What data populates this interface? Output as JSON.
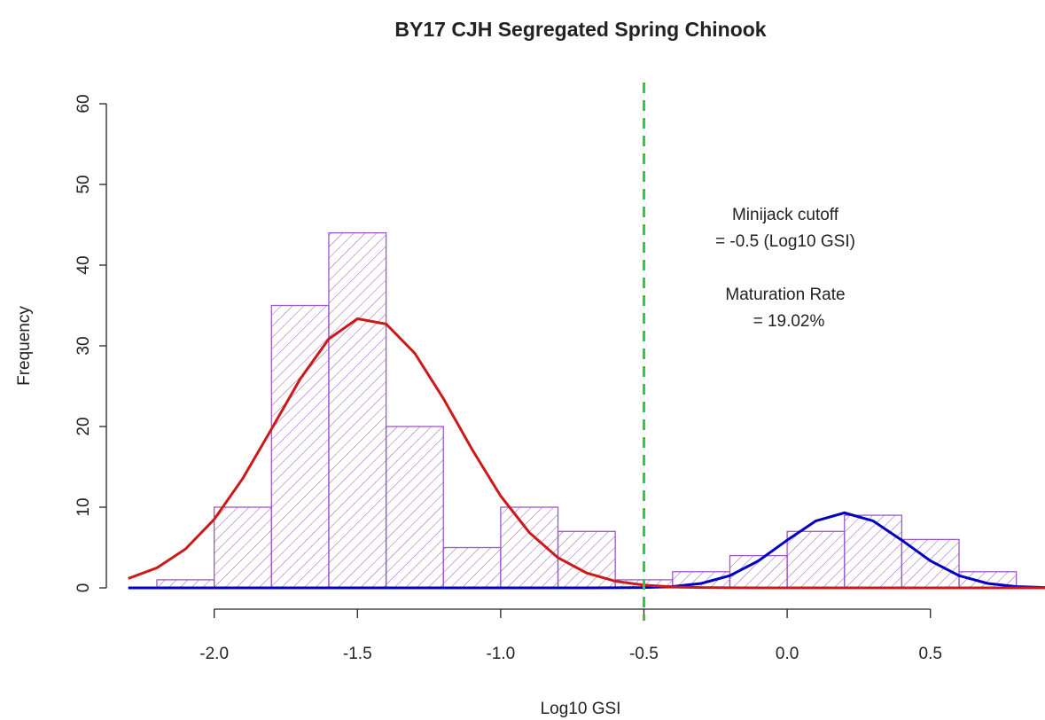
{
  "chart_data": {
    "type": "histogram",
    "title": "BY17 CJH Segregated Spring Chinook",
    "xlabel": "Log10 GSI",
    "ylabel": "Frequency",
    "bins": [
      -2.2,
      -2.0,
      -1.8,
      -1.6,
      -1.4,
      -1.2,
      -1.0,
      -0.8,
      -0.6,
      -0.4,
      -0.2,
      0.0,
      0.2,
      0.4,
      0.6,
      0.8
    ],
    "counts": [
      1,
      10,
      35,
      44,
      20,
      5,
      10,
      7,
      1,
      2,
      4,
      7,
      9,
      6,
      2
    ],
    "color": "#9b59c8",
    "xlim": [
      -2.33,
      0.9
    ],
    "ylim": [
      0,
      60
    ],
    "xticks": [
      {
        "value": -2,
        "label": "-2.0"
      },
      -1.5,
      {
        "value": -1,
        "label": "-1.0"
      },
      -0.5,
      {
        "value": 0,
        "label": "0.0"
      },
      0.5
    ],
    "yticks": [
      0,
      10,
      20,
      30,
      40,
      50,
      60
    ],
    "curves": [
      {
        "color": "#0000c0",
        "x": [
          -2.3,
          -2.2,
          -2.1,
          -2.0,
          -1.9,
          -1.8,
          -1.7,
          -1.6,
          -1.5,
          -1.4,
          -1.3,
          -1.2,
          -1.1,
          -1.0,
          -0.9,
          -0.8,
          -0.7,
          -0.6,
          -0.5,
          -0.4,
          -0.3,
          -0.2,
          -0.1,
          0.0,
          0.1,
          0.2,
          0.3,
          0.4,
          0.5,
          0.6,
          0.7,
          0.8,
          0.9
        ],
        "values": [
          0,
          0,
          0,
          0,
          0,
          0,
          0,
          0,
          0,
          0,
          0,
          0,
          0,
          0,
          0,
          0,
          0,
          0.01,
          0.04,
          0.16,
          0.55,
          1.52,
          3.35,
          5.91,
          8.3,
          9.3,
          8.3,
          5.91,
          3.35,
          1.52,
          0.55,
          0.16,
          0.04
        ]
      },
      {
        "color": "#cc1a1a",
        "x": [
          -2.3,
          -2.2,
          -2.1,
          -2.0,
          -1.9,
          -1.8,
          -1.7,
          -1.6,
          -1.5,
          -1.4,
          -1.3,
          -1.2,
          -1.1,
          -1.0,
          -0.9,
          -0.8,
          -0.7,
          -0.6,
          -0.5,
          -0.4,
          -0.3,
          -0.2,
          -0.1,
          0.0,
          0.1,
          0.2,
          0.3,
          0.4,
          0.5,
          0.6,
          0.7,
          0.8,
          0.9
        ],
        "values": [
          1.16,
          2.48,
          4.82,
          8.5,
          13.58,
          19.68,
          25.88,
          30.85,
          33.35,
          32.71,
          29.09,
          23.47,
          17.17,
          11.39,
          6.86,
          3.74,
          1.85,
          0.83,
          0.34,
          0.12,
          0.04,
          0.01,
          0,
          0,
          0,
          0,
          0,
          0,
          0,
          0,
          0,
          0,
          0
        ]
      }
    ],
    "cutoff": {
      "x": -0.5,
      "color": "#2ecc40"
    },
    "annotations": [
      "Minijack cutoff",
      "= -0.5 (Log10 GSI)",
      "Maturation Rate",
      "= 19.02%"
    ]
  }
}
